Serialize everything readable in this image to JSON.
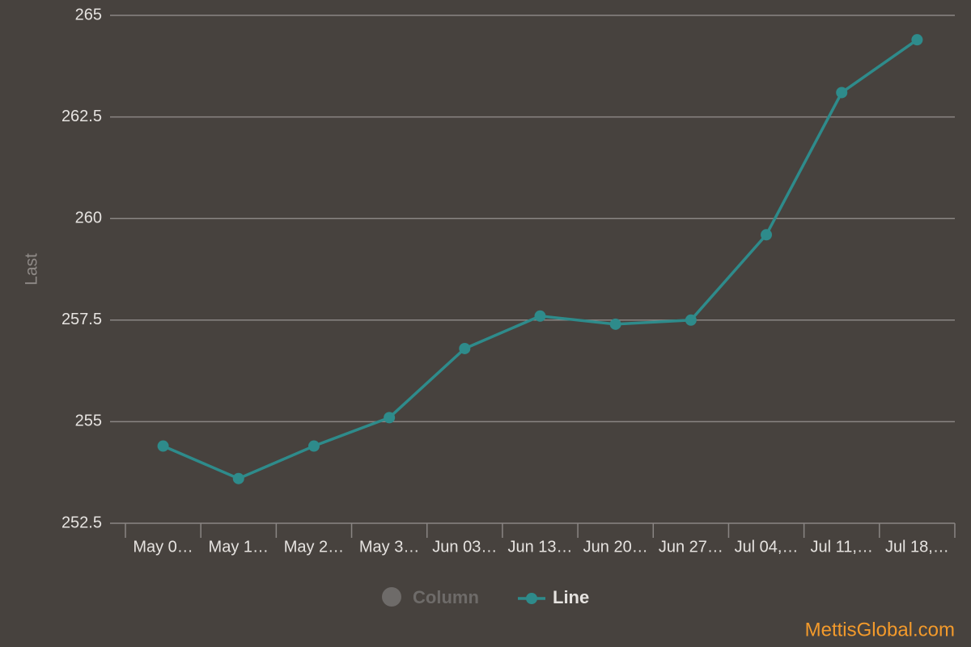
{
  "chart_data": {
    "type": "line",
    "y_label": "Last",
    "categories": [
      "May 0…",
      "May 1…",
      "May 2…",
      "May 3…",
      "Jun 03…",
      "Jun 13…",
      "Jun 20…",
      "Jun 27…",
      "Jul 04,…",
      "Jul 11,…",
      "Jul 18,…"
    ],
    "series": [
      {
        "name": "Line",
        "color": "#2e8b8b",
        "values": [
          254.4,
          253.6,
          254.4,
          255.1,
          256.8,
          257.6,
          257.4,
          257.5,
          259.6,
          263.1,
          264.4
        ]
      }
    ],
    "hidden_series": [
      {
        "name": "Column",
        "color": "#6e6b69"
      }
    ],
    "ylim": [
      252.5,
      265
    ],
    "yticks": [
      252.5,
      255,
      257.5,
      260,
      262.5,
      265
    ],
    "grid": true,
    "legend": "bottom",
    "watermark": "MettisGlobal.com"
  }
}
